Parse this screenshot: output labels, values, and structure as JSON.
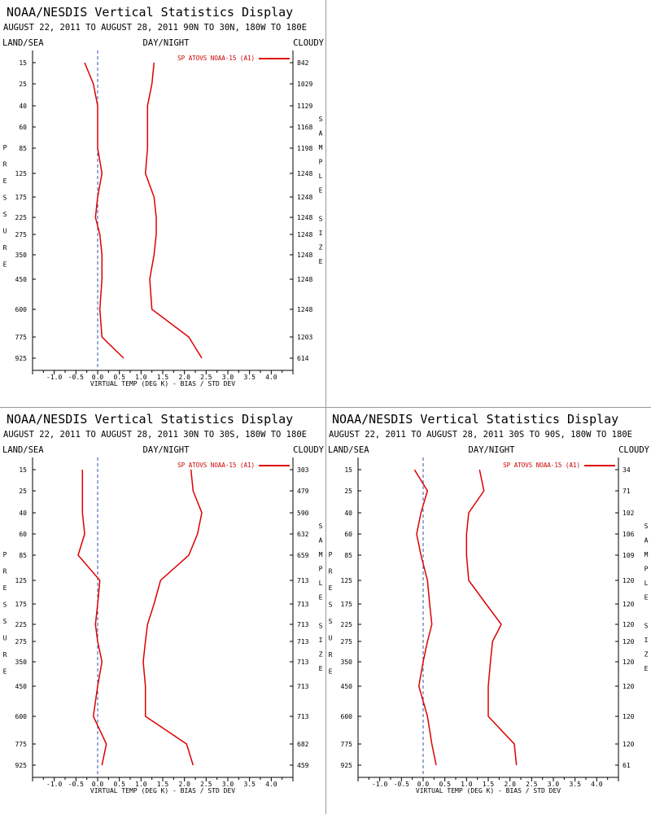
{
  "colors": {
    "series": "#dd0000",
    "axis": "#000000",
    "zero_line": "#3355aa"
  },
  "panels": [
    {
      "id": "top-left",
      "title": "NOAA/NESDIS Vertical Statistics Display",
      "subtitle": "AUGUST 22, 2011 TO AUGUST 28, 2011  90N TO 30N, 180W TO 180E",
      "corner_left": "LAND/SEA",
      "corner_mid": "DAY/NIGHT",
      "corner_right": "CLOUDY",
      "left_vertical": "PRESSURE",
      "right_vertical": "SAMPLE SIZE",
      "legend": "SP ATOVS NOAA-15 (A1)",
      "chart_data": {
        "type": "line",
        "xlabel": "VIRTUAL TEMP (DEG K) - BIAS / STD DEV",
        "xticks": [
          "-1.0",
          "-0.5",
          "0.0",
          "0.5",
          "1.0",
          "1.5",
          "2.0",
          "2.5",
          "3.0",
          "3.5",
          "4.0"
        ],
        "xlim": [
          -1.5,
          4.5
        ],
        "pressure_levels": [
          "15",
          "25",
          "40",
          "60",
          "85",
          "125",
          "175",
          "225",
          "275",
          "350",
          "450",
          "600",
          "775",
          "925"
        ],
        "sample_sizes": [
          "842",
          "1029",
          "1129",
          "1168",
          "1198",
          "1248",
          "1248",
          "1248",
          "1248",
          "1248",
          "1248",
          "1248",
          "1203",
          "614"
        ],
        "series": [
          {
            "values": [
              -0.3,
              -0.1,
              0.0,
              0.0,
              0.0,
              0.1,
              0.0,
              -0.05,
              0.05,
              0.1,
              0.1,
              0.05,
              0.1,
              0.6
            ]
          },
          {
            "values": [
              1.3,
              1.25,
              1.15,
              1.15,
              1.15,
              1.1,
              1.3,
              1.35,
              1.35,
              1.3,
              1.2,
              1.25,
              2.1,
              2.4
            ]
          }
        ]
      }
    },
    {
      "id": "bottom-left",
      "title": "NOAA/NESDIS Vertical Statistics Display",
      "subtitle": "AUGUST 22, 2011 TO AUGUST 28, 2011  30N TO 30S, 180W TO 180E",
      "corner_left": "LAND/SEA",
      "corner_mid": "DAY/NIGHT",
      "corner_right": "CLOUDY",
      "left_vertical": "PRESSURE",
      "right_vertical": "SAMPLE SIZE",
      "legend": "SP ATOVS NOAA-15 (A1)",
      "chart_data": {
        "type": "line",
        "xlabel": "VIRTUAL TEMP (DEG K) - BIAS / STD DEV",
        "xticks": [
          "-1.0",
          "-0.5",
          "0.0",
          "0.5",
          "1.0",
          "1.5",
          "2.0",
          "2.5",
          "3.0",
          "3.5",
          "4.0"
        ],
        "xlim": [
          -1.5,
          4.5
        ],
        "pressure_levels": [
          "15",
          "25",
          "40",
          "60",
          "85",
          "125",
          "175",
          "225",
          "275",
          "350",
          "450",
          "600",
          "775",
          "925"
        ],
        "sample_sizes": [
          "303",
          "479",
          "590",
          "632",
          "659",
          "713",
          "713",
          "713",
          "713",
          "713",
          "713",
          "713",
          "682",
          "459"
        ],
        "series": [
          {
            "values": [
              -0.35,
              -0.35,
              -0.35,
              -0.3,
              -0.45,
              0.05,
              0.0,
              -0.05,
              0.0,
              0.1,
              0.0,
              -0.1,
              0.2,
              0.1
            ]
          },
          {
            "values": [
              2.15,
              2.2,
              2.4,
              2.3,
              2.1,
              1.45,
              1.3,
              1.15,
              1.1,
              1.05,
              1.1,
              1.1,
              2.05,
              2.2
            ]
          }
        ]
      }
    },
    {
      "id": "bottom-right",
      "title": "NOAA/NESDIS Vertical Statistics Display",
      "subtitle": "AUGUST 22, 2011 TO AUGUST 28, 2011  30S TO 90S, 180W TO 180E",
      "corner_left": "LAND/SEA",
      "corner_mid": "DAY/NIGHT",
      "corner_right": "CLOUDY",
      "left_vertical": "PRESSURE",
      "right_vertical": "SAMPLE SIZE",
      "legend": "SP ATOVS NOAA-15 (A1)",
      "chart_data": {
        "type": "line",
        "xlabel": "VIRTUAL TEMP (DEG K) - BIAS / STD DEV",
        "xticks": [
          "-1.0",
          "-0.5",
          "0.0",
          "0.5",
          "1.0",
          "1.5",
          "2.0",
          "2.5",
          "3.0",
          "3.5",
          "4.0"
        ],
        "xlim": [
          -1.5,
          4.5
        ],
        "pressure_levels": [
          "15",
          "25",
          "40",
          "60",
          "85",
          "125",
          "175",
          "225",
          "275",
          "350",
          "450",
          "600",
          "775",
          "925"
        ],
        "sample_sizes": [
          "34",
          "71",
          "102",
          "106",
          "109",
          "120",
          "120",
          "120",
          "120",
          "120",
          "120",
          "120",
          "120",
          "61"
        ],
        "series": [
          {
            "values": [
              -0.2,
              0.1,
              -0.05,
              -0.15,
              -0.05,
              0.1,
              0.15,
              0.2,
              0.1,
              0.0,
              -0.1,
              0.1,
              0.2,
              0.3
            ]
          },
          {
            "values": [
              1.3,
              1.4,
              1.05,
              1.0,
              1.0,
              1.05,
              1.45,
              1.8,
              1.6,
              1.55,
              1.5,
              1.5,
              2.1,
              2.15
            ]
          }
        ]
      }
    }
  ]
}
